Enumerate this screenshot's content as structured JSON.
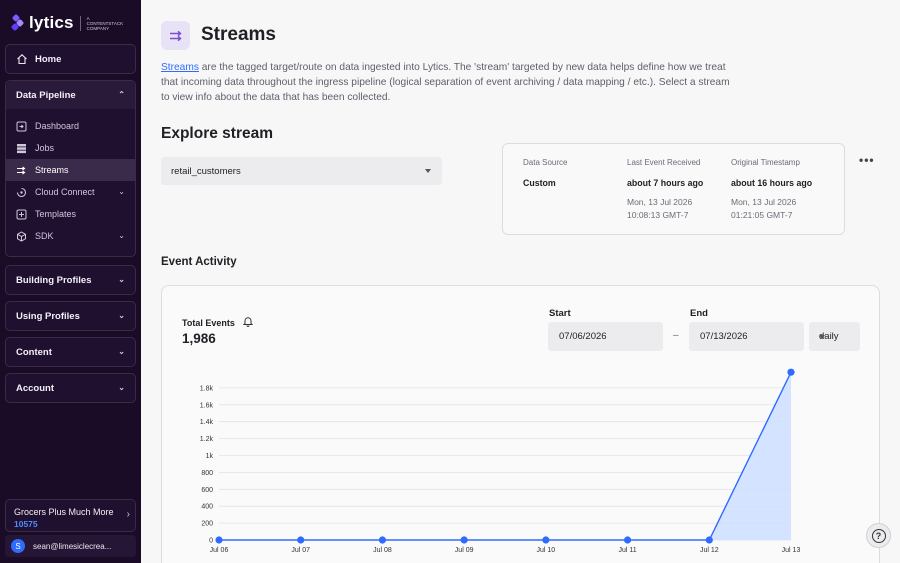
{
  "brand": {
    "name": "lytics",
    "tagline": "A CONTENTSTACK COMPANY"
  },
  "sidebar": {
    "home": "Home",
    "data_pipeline": {
      "label": "Data Pipeline",
      "items": [
        {
          "label": "Dashboard",
          "icon": "dashboard-icon",
          "active": false
        },
        {
          "label": "Jobs",
          "icon": "jobs-icon",
          "active": false
        },
        {
          "label": "Streams",
          "icon": "streams-icon",
          "active": true
        },
        {
          "label": "Cloud Connect",
          "icon": "cloud-connect-icon",
          "active": false,
          "expandable": true
        },
        {
          "label": "Templates",
          "icon": "templates-icon",
          "active": false
        },
        {
          "label": "SDK",
          "icon": "sdk-icon",
          "active": false,
          "expandable": true
        }
      ]
    },
    "sections": [
      {
        "label": "Building Profiles"
      },
      {
        "label": "Using Profiles"
      },
      {
        "label": "Content"
      },
      {
        "label": "Account"
      }
    ],
    "org": {
      "name": "Grocers Plus Much More",
      "id": "10575"
    },
    "user": {
      "initial": "S",
      "email": "sean@limesiclecrea..."
    }
  },
  "page": {
    "title": "Streams",
    "description_link": "Streams",
    "description_rest": " are the tagged target/route on data ingested into Lytics. The 'stream' targeted by new data helps define how we treat that incoming data throughout the ingress pipeline (logical separation of event archiving / data mapping / etc.). Select a stream to view info about the data that has been collected.",
    "explore_title": "Explore stream",
    "selected_stream": "retail_customers"
  },
  "info": {
    "data_source_label": "Data Source",
    "data_source_value": "Custom",
    "last_event_label": "Last Event Received",
    "last_event_value": "about 7 hours ago",
    "last_event_date": "Mon, 13 Jul 2026",
    "last_event_time": "10:08:13 GMT-7",
    "original_label": "Original Timestamp",
    "original_value": "about 16 hours ago",
    "original_date": "Mon, 13 Jul 2026",
    "original_time": "01:21:05 GMT-7"
  },
  "activity": {
    "title": "Event Activity",
    "total_label": "Total Events",
    "total_value": "1,986",
    "start_label": "Start",
    "start_value": "07/06/2026",
    "end_label": "End",
    "end_value": "07/13/2026",
    "separator": "–",
    "interval": "daily"
  },
  "colors": {
    "accent": "#2f6bff",
    "sidebar_bg": "#1a0b26",
    "area_fill": "#cfe0ff"
  },
  "chart_data": {
    "type": "area",
    "categories": [
      "Jul 06",
      "Jul 07",
      "Jul 08",
      "Jul 09",
      "Jul 10",
      "Jul 11",
      "Jul 12",
      "Jul 13"
    ],
    "series": [
      {
        "values": [
          0,
          0,
          0,
          0,
          0,
          0,
          0,
          1986
        ]
      }
    ],
    "yticks": [
      0,
      200,
      400,
      600,
      800,
      1000,
      1200,
      1400,
      1600,
      1800
    ],
    "ytick_labels": [
      "0",
      "200",
      "400",
      "600",
      "800",
      "1k",
      "1.2k",
      "1.4k",
      "1.6k",
      "1.8k"
    ],
    "ylim": [
      0,
      2000
    ],
    "grid": true
  }
}
